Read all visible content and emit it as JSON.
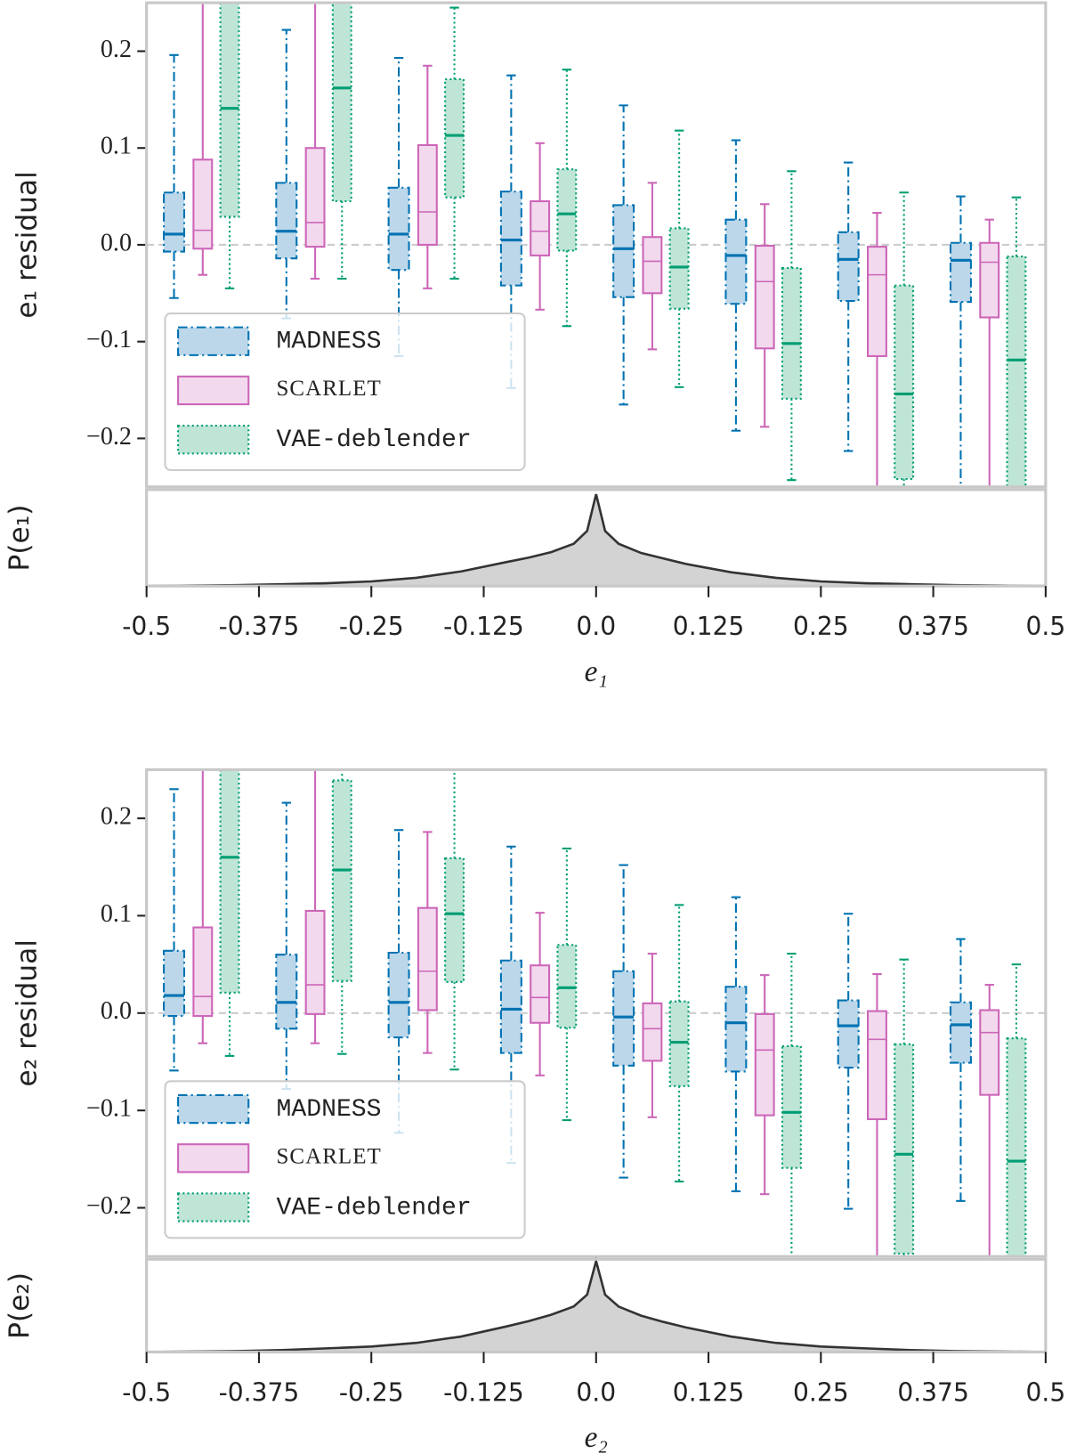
{
  "chart_data": [
    {
      "type": "box",
      "ylabel": "e₁ residual",
      "xlim": [
        -0.5,
        0.5
      ],
      "x": [
        -0.4375,
        -0.3125,
        -0.1875,
        -0.0625,
        0.0625,
        0.1875,
        0.3125,
        0.4375
      ],
      "ylim": [
        -0.25,
        0.25
      ],
      "yticks": [
        {
          "value": -0.2,
          "label": "−0.2"
        },
        {
          "value": -0.1,
          "label": "−0.1"
        },
        {
          "value": 0,
          "label": "0.0"
        },
        0.1,
        0.2
      ],
      "reference_line": 0,
      "legend": "lower left",
      "series": [
        {
          "name": "MADNESS",
          "color": "#0072b2",
          "fill": "#bcd7ea",
          "linestyle": "dashdot",
          "boxes": [
            {
              "whislo": -0.055,
              "q1": -0.007,
              "med": 0.011,
              "q3": 0.054,
              "whishi": 0.196
            },
            {
              "whislo": -0.076,
              "q1": -0.014,
              "med": 0.014,
              "q3": 0.064,
              "whishi": 0.222
            },
            {
              "whislo": -0.115,
              "q1": -0.026,
              "med": 0.011,
              "q3": 0.059,
              "whishi": 0.193
            },
            {
              "whislo": -0.148,
              "q1": -0.042,
              "med": 0.005,
              "q3": 0.055,
              "whishi": 0.175
            },
            {
              "whislo": -0.165,
              "q1": -0.054,
              "med": -0.004,
              "q3": 0.041,
              "whishi": 0.144
            },
            {
              "whislo": -0.192,
              "q1": -0.061,
              "med": -0.011,
              "q3": 0.026,
              "whishi": 0.108
            },
            {
              "whislo": -0.213,
              "q1": -0.058,
              "med": -0.015,
              "q3": 0.013,
              "whishi": 0.085
            },
            {
              "whislo": -0.26,
              "q1": -0.059,
              "med": -0.016,
              "q3": 0.002,
              "whishi": 0.05
            }
          ]
        },
        {
          "name": "SCARLET",
          "color": "#cc66b8",
          "fill": "#f3d9ee",
          "linestyle": "solid",
          "boxes": [
            {
              "whislo": -0.031,
              "q1": -0.004,
              "med": 0.015,
              "q3": 0.088,
              "whishi": 0.3
            },
            {
              "whislo": -0.035,
              "q1": -0.002,
              "med": 0.023,
              "q3": 0.1,
              "whishi": 0.3
            },
            {
              "whislo": -0.045,
              "q1": 0.0,
              "med": 0.034,
              "q3": 0.103,
              "whishi": 0.185
            },
            {
              "whislo": -0.067,
              "q1": -0.011,
              "med": 0.014,
              "q3": 0.045,
              "whishi": 0.105
            },
            {
              "whislo": -0.108,
              "q1": -0.05,
              "med": -0.017,
              "q3": 0.008,
              "whishi": 0.064
            },
            {
              "whislo": -0.188,
              "q1": -0.107,
              "med": -0.038,
              "q3": -0.001,
              "whishi": 0.042
            },
            {
              "whislo": -0.3,
              "q1": -0.115,
              "med": -0.031,
              "q3": -0.002,
              "whishi": 0.033
            },
            {
              "whislo": -0.3,
              "q1": -0.075,
              "med": -0.018,
              "q3": 0.002,
              "whishi": 0.026
            }
          ]
        },
        {
          "name": "VAE-deblender",
          "color": "#009e73",
          "fill": "#bfe5d6",
          "linestyle": "dotted",
          "boxes": [
            {
              "whislo": -0.045,
              "q1": 0.029,
              "med": 0.141,
              "q3": 0.26,
              "whishi": 0.35
            },
            {
              "whislo": -0.035,
              "q1": 0.045,
              "med": 0.162,
              "q3": 0.27,
              "whishi": 0.35
            },
            {
              "whislo": -0.035,
              "q1": 0.049,
              "med": 0.113,
              "q3": 0.171,
              "whishi": 0.245
            },
            {
              "whislo": -0.084,
              "q1": -0.006,
              "med": 0.032,
              "q3": 0.078,
              "whishi": 0.181
            },
            {
              "whislo": -0.147,
              "q1": -0.066,
              "med": -0.023,
              "q3": 0.017,
              "whishi": 0.118
            },
            {
              "whislo": -0.243,
              "q1": -0.159,
              "med": -0.102,
              "q3": -0.024,
              "whishi": 0.076
            },
            {
              "whislo": -0.33,
              "q1": -0.242,
              "med": -0.154,
              "q3": -0.042,
              "whishi": 0.054
            },
            {
              "whislo": -0.35,
              "q1": -0.26,
              "med": -0.119,
              "q3": -0.012,
              "whishi": 0.049
            }
          ]
        }
      ]
    },
    {
      "type": "area",
      "ylabel": "P(e₁)",
      "xlabel": "e₁",
      "color": "#333333",
      "fill": "#d3d3d3",
      "xlim": [
        -0.5,
        0.5
      ],
      "xticks": [
        -0.5,
        -0.375,
        -0.25,
        -0.125,
        {
          "value": 0,
          "label": "0.0"
        },
        0.125,
        0.25,
        0.375,
        0.5
      ],
      "ylim": [
        0,
        1.05
      ],
      "x": [
        -0.5,
        -0.45,
        -0.4,
        -0.35,
        -0.3,
        -0.25,
        -0.2,
        -0.15,
        -0.1,
        -0.075,
        -0.05,
        -0.025,
        -0.01,
        0,
        0.01,
        0.025,
        0.05,
        0.075,
        0.1,
        0.15,
        0.2,
        0.25,
        0.3,
        0.35,
        0.4,
        0.45,
        0.5
      ],
      "values": [
        0,
        0.005,
        0.01,
        0.02,
        0.03,
        0.05,
        0.09,
        0.16,
        0.26,
        0.31,
        0.37,
        0.46,
        0.6,
        1.0,
        0.6,
        0.46,
        0.36,
        0.3,
        0.24,
        0.15,
        0.09,
        0.05,
        0.03,
        0.02,
        0.01,
        0.005,
        0
      ]
    },
    {
      "type": "box",
      "ylabel": "e₂ residual",
      "xlim": [
        -0.5,
        0.5
      ],
      "x": [
        -0.4375,
        -0.3125,
        -0.1875,
        -0.0625,
        0.0625,
        0.1875,
        0.3125,
        0.4375
      ],
      "ylim": [
        -0.25,
        0.25
      ],
      "yticks": [
        {
          "value": -0.2,
          "label": "−0.2"
        },
        {
          "value": -0.1,
          "label": "−0.1"
        },
        {
          "value": 0,
          "label": "0.0"
        },
        0.1,
        0.2
      ],
      "reference_line": 0,
      "legend": "lower left",
      "series": [
        {
          "name": "MADNESS",
          "color": "#0072b2",
          "fill": "#bcd7ea",
          "linestyle": "dashdot",
          "boxes": [
            {
              "whislo": -0.059,
              "q1": -0.003,
              "med": 0.018,
              "q3": 0.064,
              "whishi": 0.23
            },
            {
              "whislo": -0.078,
              "q1": -0.016,
              "med": 0.011,
              "q3": 0.06,
              "whishi": 0.216
            },
            {
              "whislo": -0.123,
              "q1": -0.025,
              "med": 0.011,
              "q3": 0.062,
              "whishi": 0.188
            },
            {
              "whislo": -0.154,
              "q1": -0.041,
              "med": 0.004,
              "q3": 0.054,
              "whishi": 0.171
            },
            {
              "whislo": -0.169,
              "q1": -0.054,
              "med": -0.004,
              "q3": 0.043,
              "whishi": 0.152
            },
            {
              "whislo": -0.183,
              "q1": -0.06,
              "med": -0.01,
              "q3": 0.027,
              "whishi": 0.119
            },
            {
              "whislo": -0.201,
              "q1": -0.056,
              "med": -0.013,
              "q3": 0.013,
              "whishi": 0.102
            },
            {
              "whislo": -0.193,
              "q1": -0.051,
              "med": -0.012,
              "q3": 0.011,
              "whishi": 0.076
            }
          ]
        },
        {
          "name": "SCARLET",
          "color": "#cc66b8",
          "fill": "#f3d9ee",
          "linestyle": "solid",
          "boxes": [
            {
              "whislo": -0.031,
              "q1": -0.003,
              "med": 0.017,
              "q3": 0.088,
              "whishi": 0.3
            },
            {
              "whislo": -0.031,
              "q1": -0.001,
              "med": 0.029,
              "q3": 0.105,
              "whishi": 0.3
            },
            {
              "whislo": -0.041,
              "q1": 0.003,
              "med": 0.043,
              "q3": 0.108,
              "whishi": 0.186
            },
            {
              "whislo": -0.064,
              "q1": -0.01,
              "med": 0.016,
              "q3": 0.049,
              "whishi": 0.103
            },
            {
              "whislo": -0.107,
              "q1": -0.049,
              "med": -0.016,
              "q3": 0.01,
              "whishi": 0.061
            },
            {
              "whislo": -0.186,
              "q1": -0.105,
              "med": -0.038,
              "q3": -0.001,
              "whishi": 0.039
            },
            {
              "whislo": -0.3,
              "q1": -0.109,
              "med": -0.027,
              "q3": 0.002,
              "whishi": 0.04
            },
            {
              "whislo": -0.3,
              "q1": -0.084,
              "med": -0.02,
              "q3": 0.003,
              "whishi": 0.029
            }
          ]
        },
        {
          "name": "VAE-deblender",
          "color": "#009e73",
          "fill": "#bfe5d6",
          "linestyle": "dotted",
          "boxes": [
            {
              "whislo": -0.044,
              "q1": 0.021,
              "med": 0.16,
              "q3": 0.27,
              "whishi": 0.35
            },
            {
              "whislo": -0.042,
              "q1": 0.033,
              "med": 0.147,
              "q3": 0.239,
              "whishi": 0.3
            },
            {
              "whislo": -0.058,
              "q1": 0.032,
              "med": 0.102,
              "q3": 0.159,
              "whishi": 0.26
            },
            {
              "whislo": -0.11,
              "q1": -0.015,
              "med": 0.026,
              "q3": 0.07,
              "whishi": 0.169
            },
            {
              "whislo": -0.173,
              "q1": -0.075,
              "med": -0.03,
              "q3": 0.012,
              "whishi": 0.111
            },
            {
              "whislo": -0.25,
              "q1": -0.159,
              "med": -0.102,
              "q3": -0.034,
              "whishi": 0.061
            },
            {
              "whislo": -0.33,
              "q1": -0.247,
              "med": -0.145,
              "q3": -0.032,
              "whishi": 0.055
            },
            {
              "whislo": -0.35,
              "q1": -0.26,
              "med": -0.152,
              "q3": -0.026,
              "whishi": 0.05
            }
          ]
        }
      ]
    },
    {
      "type": "area",
      "ylabel": "P(e₂)",
      "xlabel": "e₂",
      "color": "#333333",
      "fill": "#d3d3d3",
      "xlim": [
        -0.5,
        0.5
      ],
      "xticks": [
        -0.5,
        -0.375,
        -0.25,
        -0.125,
        {
          "value": 0,
          "label": "0.0"
        },
        0.125,
        0.25,
        0.375,
        0.5
      ],
      "ylim": [
        0,
        1.02
      ],
      "x": [
        -0.5,
        -0.45,
        -0.4,
        -0.35,
        -0.3,
        -0.25,
        -0.2,
        -0.15,
        -0.1,
        -0.075,
        -0.05,
        -0.025,
        -0.01,
        0,
        0.01,
        0.025,
        0.05,
        0.075,
        0.1,
        0.15,
        0.2,
        0.25,
        0.3,
        0.35,
        0.4,
        0.45,
        0.5
      ],
      "values": [
        0,
        0.005,
        0.01,
        0.02,
        0.04,
        0.06,
        0.1,
        0.17,
        0.28,
        0.34,
        0.41,
        0.5,
        0.63,
        1.0,
        0.63,
        0.5,
        0.4,
        0.33,
        0.27,
        0.17,
        0.1,
        0.06,
        0.04,
        0.02,
        0.01,
        0.005,
        0
      ]
    }
  ]
}
